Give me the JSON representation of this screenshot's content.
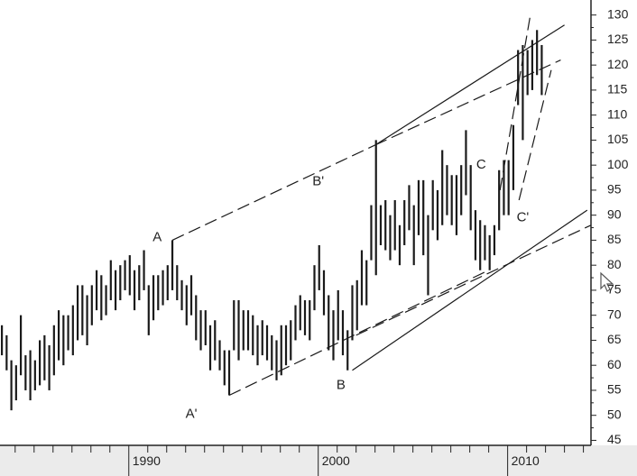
{
  "chart_data": {
    "type": "bar",
    "subtype": "price-range-bars",
    "title": "",
    "xlabel": "",
    "ylabel": "",
    "ylim": [
      44,
      133
    ],
    "xlim": [
      1983.2,
      2014.4
    ],
    "y_ticks": [
      45,
      50,
      55,
      60,
      65,
      70,
      75,
      80,
      85,
      90,
      95,
      100,
      105,
      110,
      115,
      120,
      125,
      130
    ],
    "x_year_labels": [
      {
        "year": 1990,
        "label": "1990"
      },
      {
        "year": 2000,
        "label": "2000"
      },
      {
        "year": 2010,
        "label": "2010"
      }
    ],
    "grid": false,
    "legend": "none",
    "colors": {
      "bars": "#1a1a1a",
      "lines": "#1a1a1a",
      "axis_band": "#ebebeb"
    },
    "bars": [
      [
        1983.3,
        62,
        68
      ],
      [
        1983.55,
        59,
        66
      ],
      [
        1983.8,
        51,
        61
      ],
      [
        1984.05,
        53,
        60
      ],
      [
        1984.3,
        58,
        70
      ],
      [
        1984.55,
        55,
        62
      ],
      [
        1984.8,
        53,
        63
      ],
      [
        1985.05,
        55,
        61
      ],
      [
        1985.3,
        56,
        65
      ],
      [
        1985.55,
        57,
        66
      ],
      [
        1985.8,
        55,
        64
      ],
      [
        1986.05,
        58,
        68
      ],
      [
        1986.3,
        61,
        71
      ],
      [
        1986.55,
        60,
        70
      ],
      [
        1986.8,
        63,
        70
      ],
      [
        1987.05,
        62,
        72
      ],
      [
        1987.3,
        65,
        76
      ],
      [
        1987.55,
        66,
        76
      ],
      [
        1987.8,
        64,
        74
      ],
      [
        1988.05,
        68,
        76
      ],
      [
        1988.3,
        71,
        79
      ],
      [
        1988.55,
        69,
        78
      ],
      [
        1988.8,
        70,
        76
      ],
      [
        1989.05,
        73,
        81
      ],
      [
        1989.3,
        71,
        79
      ],
      [
        1989.55,
        73,
        80
      ],
      [
        1989.8,
        75,
        81
      ],
      [
        1990.05,
        74,
        82
      ],
      [
        1990.3,
        71,
        79
      ],
      [
        1990.55,
        73,
        80
      ],
      [
        1990.8,
        75,
        83
      ],
      [
        1991.05,
        66,
        76
      ],
      [
        1991.3,
        69,
        78
      ],
      [
        1991.55,
        71,
        78
      ],
      [
        1991.8,
        72,
        79
      ],
      [
        1992.05,
        73,
        80
      ],
      [
        1992.3,
        75,
        85
      ],
      [
        1992.55,
        73,
        80
      ],
      [
        1992.8,
        71,
        77
      ],
      [
        1993.05,
        68,
        76
      ],
      [
        1993.3,
        70,
        78
      ],
      [
        1993.55,
        65,
        74
      ],
      [
        1993.8,
        63,
        71
      ],
      [
        1994.05,
        64,
        71
      ],
      [
        1994.3,
        59,
        68
      ],
      [
        1994.55,
        61,
        69
      ],
      [
        1994.8,
        59,
        65
      ],
      [
        1995.05,
        56,
        63
      ],
      [
        1995.3,
        54,
        63
      ],
      [
        1995.55,
        63,
        73
      ],
      [
        1995.8,
        61,
        73
      ],
      [
        1996.05,
        63,
        71
      ],
      [
        1996.3,
        63,
        71
      ],
      [
        1996.55,
        62,
        70
      ],
      [
        1996.8,
        60,
        68
      ],
      [
        1997.05,
        62,
        69
      ],
      [
        1997.3,
        61,
        68
      ],
      [
        1997.55,
        59,
        66
      ],
      [
        1997.8,
        57,
        65
      ],
      [
        1998.05,
        58,
        68
      ],
      [
        1998.3,
        60,
        68
      ],
      [
        1998.55,
        61,
        69
      ],
      [
        1998.8,
        65,
        72
      ],
      [
        1999.05,
        67,
        74
      ],
      [
        1999.3,
        66,
        73
      ],
      [
        1999.55,
        65,
        73
      ],
      [
        1999.8,
        71,
        80
      ],
      [
        2000.05,
        75,
        84
      ],
      [
        2000.3,
        70,
        79
      ],
      [
        2000.55,
        63,
        74
      ],
      [
        2000.8,
        61,
        71
      ],
      [
        2001.05,
        65,
        75
      ],
      [
        2001.3,
        62,
        71
      ],
      [
        2001.55,
        59,
        67
      ],
      [
        2001.8,
        65,
        76
      ],
      [
        2002.05,
        67,
        77
      ],
      [
        2002.3,
        72,
        83
      ],
      [
        2002.55,
        72,
        81
      ],
      [
        2002.8,
        81,
        92
      ],
      [
        2003.05,
        78,
        105
      ],
      [
        2003.3,
        84,
        92
      ],
      [
        2003.55,
        83,
        93
      ],
      [
        2003.8,
        81,
        90
      ],
      [
        2004.05,
        83,
        93
      ],
      [
        2004.3,
        80,
        88
      ],
      [
        2004.55,
        84,
        93
      ],
      [
        2004.8,
        87,
        96
      ],
      [
        2005.05,
        80,
        92
      ],
      [
        2005.3,
        86,
        97
      ],
      [
        2005.55,
        82,
        97
      ],
      [
        2005.8,
        74,
        90
      ],
      [
        2006.05,
        87,
        97
      ],
      [
        2006.3,
        85,
        95
      ],
      [
        2006.55,
        88,
        103
      ],
      [
        2006.8,
        90,
        100
      ],
      [
        2007.05,
        88,
        98
      ],
      [
        2007.3,
        86,
        98
      ],
      [
        2007.55,
        90,
        100
      ],
      [
        2007.8,
        94,
        107
      ],
      [
        2008.05,
        87,
        100
      ],
      [
        2008.3,
        81,
        91
      ],
      [
        2008.55,
        79,
        89
      ],
      [
        2008.8,
        81,
        88
      ],
      [
        2009.05,
        79,
        86
      ],
      [
        2009.3,
        82,
        88
      ],
      [
        2009.55,
        87,
        99
      ],
      [
        2009.8,
        90,
        101
      ],
      [
        2010.05,
        90,
        101
      ],
      [
        2010.3,
        95,
        108
      ],
      [
        2010.55,
        112,
        123
      ],
      [
        2010.8,
        105,
        124
      ],
      [
        2011.05,
        114,
        123
      ],
      [
        2011.3,
        115,
        125
      ],
      [
        2011.55,
        118,
        127
      ],
      [
        2011.8,
        114,
        124
      ]
    ],
    "trendlines": [
      {
        "style": "solid",
        "from": [
          2003.0,
          104
        ],
        "to": [
          2013.0,
          128
        ]
      },
      {
        "style": "solid",
        "from": [
          2001.8,
          59
        ],
        "to": [
          2014.2,
          91
        ]
      },
      {
        "style": "dashed",
        "from": [
          1992.3,
          85
        ],
        "to": [
          2003.0,
          104
        ]
      },
      {
        "style": "dashed",
        "from": [
          2003.0,
          104
        ],
        "to": [
          2012.8,
          121
        ]
      },
      {
        "style": "dashed",
        "from": [
          1995.3,
          54
        ],
        "to": [
          2009.0,
          79
        ]
      },
      {
        "style": "dashed",
        "from": [
          2002.0,
          66
        ],
        "to": [
          2014.4,
          88
        ]
      },
      {
        "style": "dashed",
        "from": [
          2009.6,
          95
        ],
        "to": [
          2011.2,
          130
        ]
      },
      {
        "style": "dashed",
        "from": [
          2010.6,
          93
        ],
        "to": [
          2012.3,
          119
        ]
      }
    ],
    "annotations": [
      {
        "text": "A",
        "x": 1991.5,
        "y": 85.5
      },
      {
        "text": "A'",
        "x": 1993.3,
        "y": 50.2
      },
      {
        "text": "B'",
        "x": 2000.0,
        "y": 96.7
      },
      {
        "text": "B",
        "x": 2001.2,
        "y": 56.0
      },
      {
        "text": "C",
        "x": 2008.6,
        "y": 100.0
      },
      {
        "text": "C'",
        "x": 2010.8,
        "y": 89.5
      }
    ]
  }
}
